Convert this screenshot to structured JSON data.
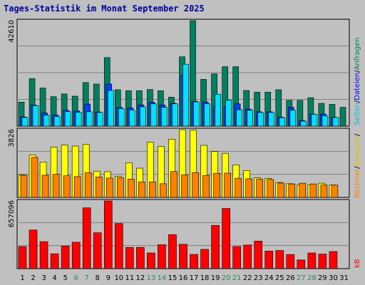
{
  "title": "Tages-Statistik im Monat September 2025",
  "colors": {
    "frame_bg": "#C0C0C0",
    "plot_bg": "#C0C0C0",
    "title_text": "#0000A0",
    "gridline": "#808080",
    "weekend_tick": "#2E8B57",
    "weekday_tick": "#000000",
    "anfragen": "#008060",
    "dateien": "#0040FF",
    "seiten": "#00E0FF",
    "besuche": "#FFFF00",
    "rechner": "#FF8000",
    "kb": "#FF0000",
    "label_anfragen": "#008060",
    "label_dateien": "#0000FF",
    "label_seiten": "#00C0E0",
    "label_besuche": "#E0C000",
    "label_rechner": "#FF8000",
    "label_kb": "#FF0000"
  },
  "right_labels": {
    "anfragen": "Anfragen",
    "dateien": "Dateien",
    "seiten": "Seiten",
    "besuche": "Besuche",
    "rechner": "Rechner",
    "kb": "kB",
    "sep": "/"
  },
  "chart_data": [
    {
      "type": "bar",
      "panel": "top",
      "y_max_label": "42610",
      "ylim": [
        0,
        42610
      ],
      "categories": [
        "1",
        "2",
        "3",
        "4",
        "5",
        "6",
        "7",
        "8",
        "9",
        "10",
        "11",
        "12",
        "13",
        "14",
        "15",
        "16",
        "17",
        "18",
        "19",
        "20",
        "21",
        "22",
        "23",
        "24",
        "25",
        "26",
        "27",
        "28",
        "29",
        "30",
        "31"
      ],
      "weekend_days": [
        6,
        7,
        13,
        14,
        20,
        21,
        27,
        28
      ],
      "series": [
        {
          "name": "Anfragen",
          "values": [
            9700,
            19200,
            15400,
            11900,
            13000,
            12100,
            17600,
            17000,
            27700,
            14700,
            14300,
            14300,
            14800,
            14300,
            11700,
            28000,
            42610,
            18900,
            21100,
            24000,
            24000,
            14400,
            13700,
            13700,
            14700,
            10400,
            10400,
            11500,
            9200,
            8800,
            7600
          ]
        },
        {
          "name": "Dateien",
          "values": [
            3700,
            8500,
            5300,
            4500,
            6400,
            6100,
            8900,
            5700,
            17000,
            7600,
            7400,
            8600,
            9700,
            8500,
            9200,
            20700,
            10000,
            9800,
            8200,
            7900,
            9000,
            6900,
            5800,
            5800,
            3700,
            7600,
            2300,
            4900,
            4900,
            3600,
            0
          ]
        },
        {
          "name": "Seiten",
          "values": [
            3500,
            8300,
            4400,
            3900,
            5900,
            5600,
            5800,
            5500,
            14400,
            7100,
            6500,
            7800,
            9000,
            7600,
            9000,
            25000,
            9800,
            9000,
            12900,
            10500,
            6600,
            6400,
            5500,
            5500,
            3400,
            6400,
            2000,
            4800,
            4200,
            3500,
            0
          ]
        }
      ]
    },
    {
      "type": "bar",
      "panel": "middle",
      "y_max_label": "3826",
      "ylim": [
        0,
        3826
      ],
      "categories": [
        "1",
        "2",
        "3",
        "4",
        "5",
        "6",
        "7",
        "8",
        "9",
        "10",
        "11",
        "12",
        "13",
        "14",
        "15",
        "16",
        "17",
        "18",
        "19",
        "20",
        "21",
        "22",
        "23",
        "24",
        "25",
        "26",
        "27",
        "28",
        "29",
        "30",
        "31"
      ],
      "series": [
        {
          "name": "Besuche",
          "values": [
            1270,
            2400,
            2000,
            2840,
            2960,
            2900,
            2990,
            1480,
            1450,
            1180,
            1950,
            1650,
            3120,
            2880,
            3290,
            3826,
            3800,
            2940,
            2590,
            2490,
            1840,
            1520,
            1100,
            1070,
            840,
            770,
            710,
            720,
            800,
            700,
            0
          ]
        },
        {
          "name": "Rechner",
          "values": [
            1250,
            2260,
            1250,
            1300,
            1220,
            1170,
            1390,
            1150,
            1090,
            1110,
            1030,
            870,
            870,
            770,
            1460,
            1270,
            1400,
            1240,
            1360,
            1370,
            1080,
            1050,
            1030,
            1010,
            810,
            760,
            800,
            760,
            700,
            690,
            0
          ]
        }
      ]
    },
    {
      "type": "bar",
      "panel": "bottom",
      "y_max_label": "657096",
      "ylim": [
        0,
        657096
      ],
      "categories": [
        "1",
        "2",
        "3",
        "4",
        "5",
        "6",
        "7",
        "8",
        "9",
        "10",
        "11",
        "12",
        "13",
        "14",
        "15",
        "16",
        "17",
        "18",
        "19",
        "20",
        "21",
        "22",
        "23",
        "24",
        "25",
        "26",
        "27",
        "28",
        "29",
        "30",
        "31"
      ],
      "series": [
        {
          "name": "kB",
          "values": [
            214000,
            375000,
            262000,
            144000,
            219000,
            256000,
            590000,
            348000,
            657096,
            438000,
            206000,
            206000,
            152000,
            232000,
            330000,
            236000,
            138000,
            187000,
            419000,
            584000,
            214000,
            229000,
            267000,
            170000,
            176000,
            137000,
            84000,
            152000,
            141000,
            166000,
            0
          ]
        }
      ]
    }
  ]
}
